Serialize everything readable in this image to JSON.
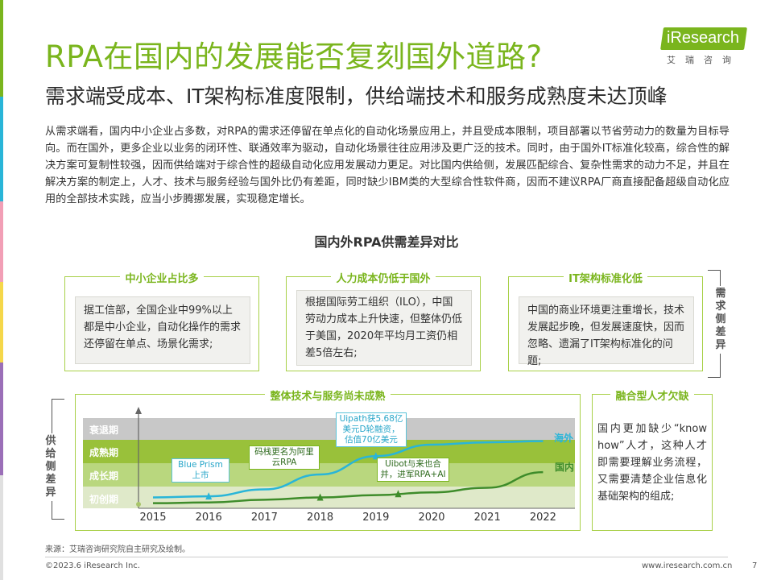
{
  "header": {
    "title": "RPA在国内的发展能否复刻国外道路?",
    "subtitle": "需求端受成本、IT架构标准度限制，供给端技术和服务成熟度未达顶峰",
    "logo_text": "iResearch",
    "logo_sub": "艾瑞咨询",
    "brand_color": "#7ab51d"
  },
  "body_text": "从需求端看，国内中小企业占多数，对RPA的需求还停留在单点化的自动化场景应用上，并且受成本限制，项目部署以节省劳动力的数量为目标导向。而在国外，更多企业以业务的闭环性、联通效率为驱动，自动化场景往往应用涉及更广泛的技术。同时，由于国外IT标准化较高，综合性的解决方案可复制性较强，因而供给端对于综合性的超级自动化应用发展动力更足。对比国内供给侧，发展匹配综合、复杂性需求的动力不足，并且在解决方案的制定上，人才、技术与服务经验与国外比仍有差距，同时缺少IBM类的大型综合性软件商，因而不建议RPA厂商直接配备超级自动化应用的全部技术实践，应当小步腾挪发展，实现稳定增长。",
  "diagram": {
    "title": "国内外RPA供需差异对比",
    "demand_side": {
      "label": "需求侧差异",
      "boxes": [
        {
          "heading": "中小企业占比多",
          "text": "据工信部，全国企业中99%以上都是中小企业，自动化操作的需求还停留在单点、场景化需求;"
        },
        {
          "heading": "人力成本仍低于国外",
          "text": "根据国际劳工组织（ILO），中国劳动力成本上升快速，但整体仍低于美国，2020年平均月工资仍相差5倍左右;"
        },
        {
          "heading": "IT架构标准化低",
          "text": "中国的商业环境更注重增长，技术发展起步晚，但发展速度快，因而忽略、遗漏了IT架构标准化的问题;"
        }
      ]
    },
    "supply_side": {
      "label": "供给侧差异",
      "tech_heading": "整体技术与服务尚未成熟",
      "talent": {
        "heading": "融合型人才欠缺",
        "text": "国内更加缺少“know how”人才，这种人才即需要理解业务流程，又需要清楚企业信息化基础架构的组成;"
      }
    }
  },
  "chart_data": {
    "type": "line",
    "x": [
      2015,
      2016,
      2017,
      2018,
      2019,
      2020,
      2021,
      2022
    ],
    "y_categories": [
      "初创期",
      "成长期",
      "成熟期",
      "衰退期"
    ],
    "series": [
      {
        "name": "海外",
        "color": "#29b5d8",
        "values": [
          0.0,
          0.05,
          0.35,
          1.0,
          1.8,
          2.3,
          2.4,
          2.45
        ]
      },
      {
        "name": "国内",
        "color": "#3e8c2a",
        "values": [
          -0.25,
          -0.22,
          -0.1,
          0.0,
          0.1,
          0.22,
          0.42,
          1.1
        ]
      }
    ],
    "annotations": [
      {
        "year": 2016,
        "series": "海外",
        "text": "Blue Prism上市"
      },
      {
        "year": 2018,
        "series": "国内",
        "text": "码栈更名为阿里云RPA"
      },
      {
        "year": 2019,
        "series": "海外",
        "text": "Uipath获5.68亿美元D轮融资，估值70亿美元"
      },
      {
        "year": 2019.4,
        "series": "国内",
        "text": "Uibot与来也合并，进军RPA+AI"
      }
    ]
  },
  "footer": {
    "source": "来源：艾瑞咨询研究院自主研究及绘制。",
    "copyright": "©2023.6 iResearch Inc.",
    "url": "www.iresearch.com.cn",
    "page": "7"
  }
}
